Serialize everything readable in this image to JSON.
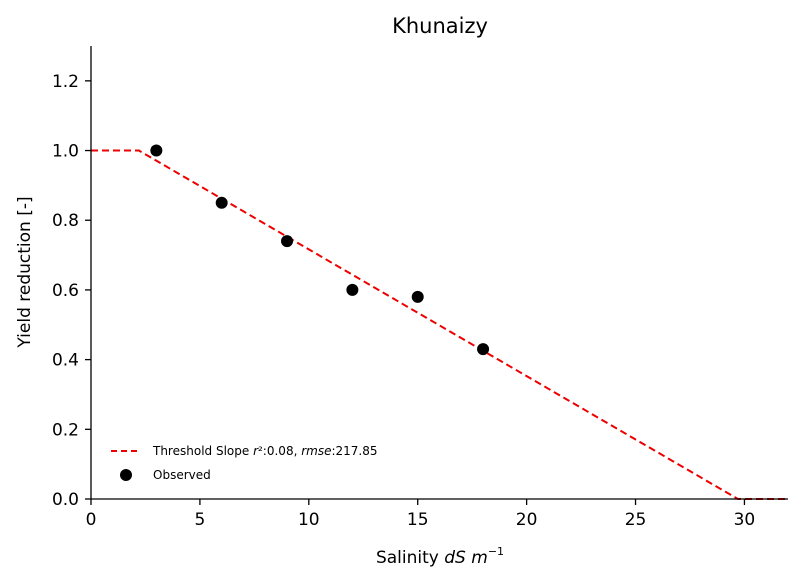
{
  "chart_data": {
    "type": "scatter",
    "title": "Khunaizy",
    "xlabel": "Salinity dS m⁻¹",
    "ylabel": "Yield reduction [-]",
    "xlim": [
      0,
      32
    ],
    "ylim": [
      0,
      1.3
    ],
    "xticks": [
      0,
      5,
      10,
      15,
      20,
      25,
      30
    ],
    "yticks": [
      0.0,
      0.2,
      0.4,
      0.6,
      0.8,
      1.0,
      1.2
    ],
    "grid": false,
    "legend_position": "bottom-left",
    "series": [
      {
        "name": "Threshold Slope r²:0.08, rmse:217.85",
        "kind": "line",
        "style": "dashed",
        "color": "#ee0000",
        "x": [
          0,
          2.2,
          29.7,
          32
        ],
        "y": [
          1.0,
          1.0,
          0.0,
          0.0
        ]
      },
      {
        "name": "Observed",
        "kind": "scatter",
        "color": "#000000",
        "x": [
          3,
          6,
          9,
          12,
          15,
          18
        ],
        "y": [
          1.0,
          0.85,
          0.74,
          0.6,
          0.58,
          0.43
        ]
      }
    ]
  }
}
